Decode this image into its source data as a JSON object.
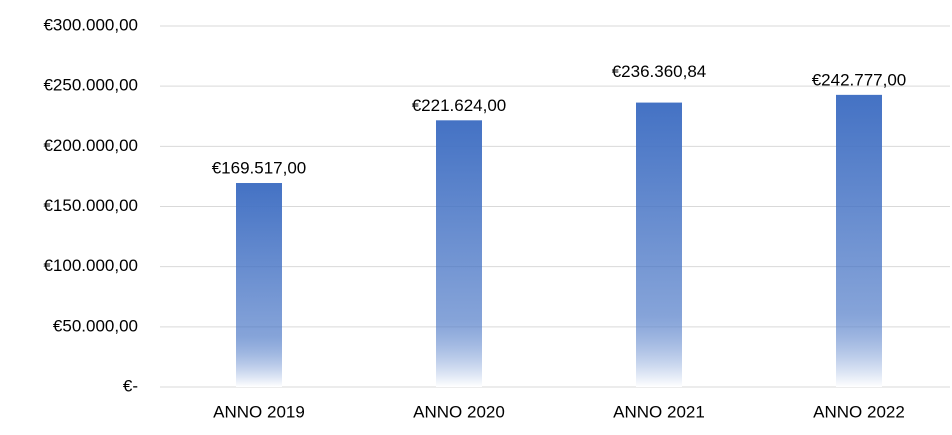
{
  "chart_data": {
    "type": "bar",
    "categories": [
      "ANNO 2019",
      "ANNO 2020",
      "ANNO 2021",
      "ANNO 2022"
    ],
    "values": [
      169517,
      221624,
      236360.84,
      242777
    ],
    "value_labels": [
      "€169.517,00",
      "€221.624,00",
      "€236.360,84",
      "€242.777,00"
    ],
    "color": "#4472c4",
    "ylim": [
      0,
      300000
    ],
    "yticks": [
      {
        "value": 0,
        "label": "€-"
      },
      {
        "value": 50000,
        "label": "€50.000,00"
      },
      {
        "value": 100000,
        "label": "€100.000,00"
      },
      {
        "value": 150000,
        "label": "€150.000,00"
      },
      {
        "value": 200000,
        "label": "€200.000,00"
      },
      {
        "value": 250000,
        "label": "€250.000,00"
      },
      {
        "value": 300000,
        "label": "€300.000,00"
      }
    ],
    "grid": true
  }
}
